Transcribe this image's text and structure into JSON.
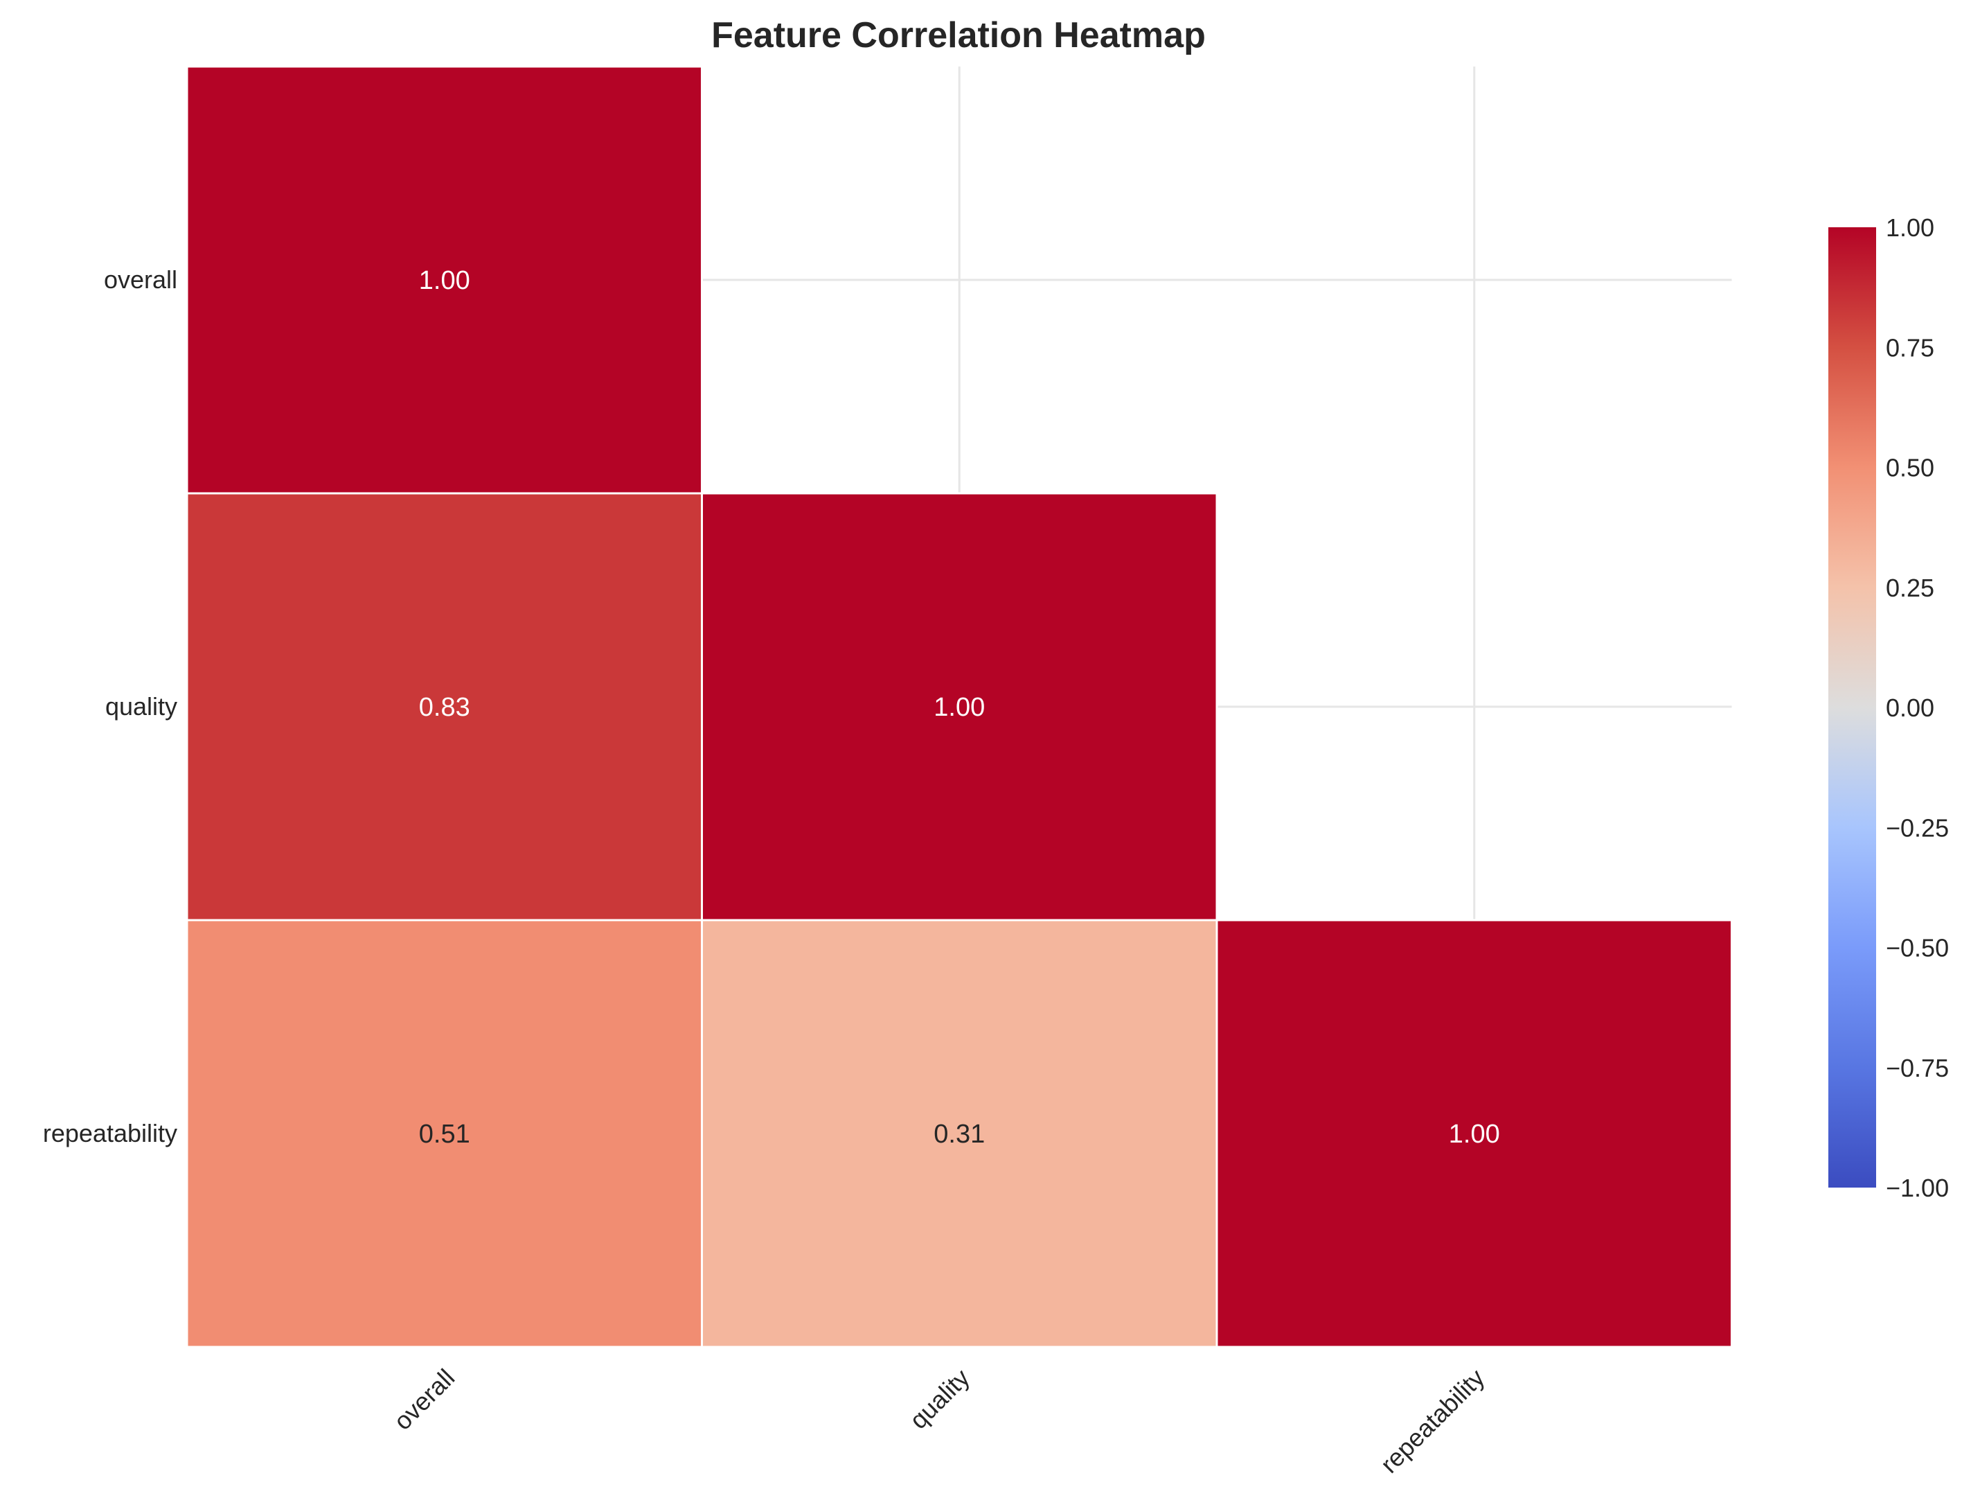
{
  "chart_data": {
    "type": "heatmap",
    "title": "Feature Correlation Heatmap",
    "rows": [
      "overall",
      "quality",
      "repeatability"
    ],
    "columns": [
      "overall",
      "quality",
      "repeatability"
    ],
    "values": [
      [
        1.0,
        null,
        null
      ],
      [
        0.83,
        1.0,
        null
      ],
      [
        0.51,
        0.31,
        1.0
      ]
    ],
    "value_labels": [
      [
        "1.00",
        "",
        ""
      ],
      [
        "0.83",
        "1.00",
        ""
      ],
      [
        "0.51",
        "0.31",
        "1.00"
      ]
    ],
    "mask": "upper-triangle",
    "colormap": "coolwarm",
    "vmin": -1.0,
    "vmax": 1.0,
    "colorbar_ticks": [
      "1.00",
      "0.75",
      "0.50",
      "0.25",
      "0.00",
      "−0.25",
      "−0.50",
      "−0.75",
      "−1.00"
    ],
    "colorbar_values": [
      1.0,
      0.75,
      0.5,
      0.25,
      0.0,
      -0.25,
      -0.5,
      -0.75,
      -1.0
    ],
    "grid": true
  }
}
